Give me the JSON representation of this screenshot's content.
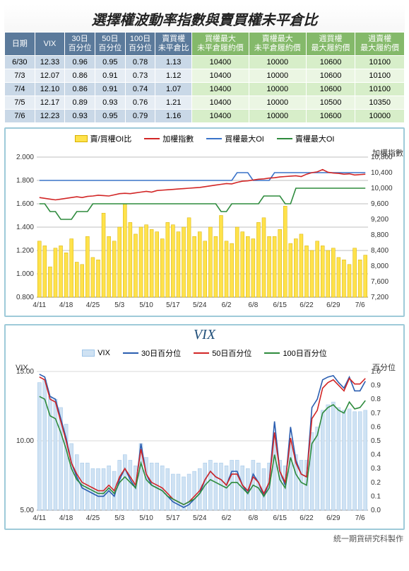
{
  "title": "選擇權波動率指數與賣買權未平倉比",
  "footer": "統一期貨研究科製作",
  "table": {
    "headers_blue": [
      "日期",
      "VIX",
      "30日\n百分位",
      "50日\n百分位",
      "100日\n百分位",
      "賣買權\n未平倉比"
    ],
    "headers_green": [
      "買權最大\n未平倉履約價",
      "賣權最大\n未平倉履約價",
      "週買權\n最大履約價",
      "週賣權\n最大履約價"
    ],
    "rows": [
      {
        "date": "6/30",
        "vix": "12.33",
        "p30": "0.96",
        "p50": "0.95",
        "p100": "0.78",
        "pcr": "1.13",
        "cmax": "10400",
        "pmax": "10000",
        "wc": "10600",
        "wp": "10100"
      },
      {
        "date": "7/3",
        "vix": "12.07",
        "p30": "0.86",
        "p50": "0.91",
        "p100": "0.73",
        "pcr": "1.12",
        "cmax": "10400",
        "pmax": "10000",
        "wc": "10600",
        "wp": "10100"
      },
      {
        "date": "7/4",
        "vix": "12.10",
        "p30": "0.86",
        "p50": "0.91",
        "p100": "0.74",
        "pcr": "1.07",
        "cmax": "10400",
        "pmax": "10000",
        "wc": "10600",
        "wp": "10100"
      },
      {
        "date": "7/5",
        "vix": "12.17",
        "p30": "0.89",
        "p50": "0.93",
        "p100": "0.76",
        "pcr": "1.21",
        "cmax": "10400",
        "pmax": "10000",
        "wc": "10500",
        "wp": "10350"
      },
      {
        "date": "7/6",
        "vix": "12.23",
        "p30": "0.93",
        "p50": "0.95",
        "p100": "0.79",
        "pcr": "1.16",
        "cmax": "10400",
        "pmax": "10000",
        "wc": "10600",
        "wp": "10000"
      }
    ]
  },
  "chart1": {
    "legend": {
      "oi": "賣/買權OI比",
      "twi": "加權指數",
      "call": "買權最大OI",
      "put": "賣權最大OI"
    },
    "colors": {
      "bar": "#ffe24b",
      "bar_border": "#d6b000",
      "twi": "#d22626",
      "call": "#3a73c9",
      "put": "#2e8b3d",
      "grid": "#bfbfbf",
      "axis": "#888888",
      "text": "#333333"
    },
    "axis_left": {
      "label_none": "",
      "min": 0.8,
      "max": 2.0,
      "step": 0.2,
      "fmt": "3"
    },
    "axis_right": {
      "label": "加權指數",
      "min": 7200,
      "max": 10800,
      "step": 400
    },
    "x_labels": [
      "4/11",
      "4/18",
      "4/25",
      "5/3",
      "5/10",
      "5/17",
      "5/24",
      "6/2",
      "6/8",
      "6/15",
      "6/22",
      "6/29",
      "7/6"
    ],
    "bars": [
      1.28,
      1.24,
      1.06,
      1.22,
      1.24,
      1.18,
      1.3,
      1.1,
      1.08,
      1.32,
      1.14,
      1.12,
      1.52,
      1.32,
      1.28,
      1.4,
      1.6,
      1.44,
      1.34,
      1.4,
      1.42,
      1.38,
      1.36,
      1.3,
      1.44,
      1.42,
      1.36,
      1.4,
      1.48,
      1.32,
      1.36,
      1.28,
      1.4,
      1.32,
      1.5,
      1.28,
      1.26,
      1.4,
      1.36,
      1.32,
      1.3,
      1.44,
      1.48,
      1.32,
      1.32,
      1.38,
      1.58,
      1.26,
      1.3,
      1.34,
      1.24,
      1.2,
      1.28,
      1.24,
      1.2,
      1.22,
      1.14,
      1.12,
      1.08,
      1.22,
      1.12,
      1.16
    ],
    "twi": [
      9760,
      9740,
      9720,
      9700,
      9720,
      9740,
      9760,
      9780,
      9760,
      9790,
      9800,
      9820,
      9810,
      9800,
      9830,
      9860,
      9870,
      9860,
      9880,
      9900,
      9920,
      9900,
      9940,
      9950,
      9960,
      9970,
      9980,
      9990,
      10000,
      10010,
      10020,
      10040,
      10060,
      10080,
      10100,
      10120,
      10110,
      10150,
      10180,
      10190,
      10210,
      10230,
      10240,
      10260,
      10270,
      10290,
      10300,
      10310,
      10320,
      10300,
      10360,
      10400,
      10420,
      10480,
      10410,
      10390,
      10380,
      10360,
      10370,
      10340,
      10350,
      10360
    ],
    "call": [
      10200,
      10200,
      10200,
      10200,
      10200,
      10200,
      10200,
      10200,
      10200,
      10200,
      10200,
      10200,
      10200,
      10200,
      10200,
      10200,
      10200,
      10200,
      10200,
      10200,
      10200,
      10200,
      10200,
      10200,
      10200,
      10200,
      10200,
      10200,
      10200,
      10200,
      10200,
      10200,
      10200,
      10200,
      10200,
      10200,
      10200,
      10400,
      10400,
      10400,
      10200,
      10200,
      10200,
      10200,
      10400,
      10400,
      10400,
      10400,
      10400,
      10400,
      10400,
      10400,
      10400,
      10400,
      10400,
      10400,
      10400,
      10400,
      10400,
      10400,
      10400,
      10400
    ],
    "put": [
      9600,
      9600,
      9400,
      9400,
      9200,
      9200,
      9200,
      9400,
      9400,
      9400,
      9600,
      9600,
      9600,
      9600,
      9600,
      9600,
      9600,
      9600,
      9600,
      9600,
      9600,
      9600,
      9600,
      9600,
      9600,
      9600,
      9600,
      9600,
      9600,
      9600,
      9600,
      9600,
      9600,
      9600,
      9400,
      9400,
      9600,
      9600,
      9600,
      9600,
      9600,
      9600,
      9800,
      9800,
      9800,
      9800,
      9600,
      9600,
      10000,
      10000,
      10000,
      10000,
      10000,
      10000,
      10000,
      10000,
      10000,
      10000,
      10000,
      10000,
      10000,
      10000
    ]
  },
  "chart2": {
    "title": "VIX",
    "legend": {
      "vix": "VIX",
      "p30": "30日百分位",
      "p50": "50日百分位",
      "p100": "100日百分位"
    },
    "colors": {
      "bar": "#cfe2f3",
      "bar_border": "#9fc5e8",
      "p30": "#2a5db0",
      "p50": "#d22626",
      "p100": "#2e8b3d",
      "grid": "#d9d9d9",
      "axis": "#888888",
      "text": "#333333"
    },
    "axis_left": {
      "label": "VIX",
      "min": 5.0,
      "max": 15.0,
      "step": 5.0
    },
    "axis_right": {
      "label": "百分位",
      "min": 0,
      "max": 1,
      "step": 0.1
    },
    "x_labels": [
      "4/11",
      "4/18",
      "4/25",
      "5/3",
      "5/10",
      "5/17",
      "5/24",
      "6/2",
      "6/8",
      "6/15",
      "6/22",
      "6/29",
      "7/6"
    ],
    "vix": [
      14.2,
      14.4,
      13.2,
      13.0,
      12.4,
      11.2,
      9.8,
      9.0,
      8.4,
      8.4,
      8.0,
      8.0,
      8.0,
      8.2,
      7.8,
      8.6,
      9.0,
      8.6,
      8.2,
      9.8,
      8.8,
      8.4,
      8.4,
      8.2,
      8.0,
      7.6,
      7.6,
      7.4,
      7.6,
      7.8,
      8.0,
      8.4,
      8.6,
      8.4,
      8.4,
      8.2,
      8.6,
      8.6,
      8.2,
      8.0,
      8.6,
      8.4,
      8.0,
      8.4,
      10.2,
      8.6,
      8.2,
      10.0,
      9.0,
      8.6,
      8.6,
      10.6,
      11.0,
      12.2,
      12.6,
      12.8,
      12.4,
      12.2,
      12.3,
      12.1,
      12.1,
      12.2
    ],
    "p30": [
      0.98,
      0.96,
      0.82,
      0.8,
      0.66,
      0.52,
      0.34,
      0.24,
      0.16,
      0.14,
      0.12,
      0.1,
      0.1,
      0.14,
      0.1,
      0.22,
      0.3,
      0.22,
      0.16,
      0.48,
      0.26,
      0.18,
      0.16,
      0.14,
      0.1,
      0.06,
      0.04,
      0.02,
      0.04,
      0.08,
      0.12,
      0.22,
      0.28,
      0.24,
      0.22,
      0.18,
      0.28,
      0.28,
      0.18,
      0.12,
      0.26,
      0.2,
      0.1,
      0.2,
      0.64,
      0.28,
      0.18,
      0.6,
      0.36,
      0.26,
      0.24,
      0.74,
      0.8,
      0.94,
      0.96,
      0.97,
      0.92,
      0.88,
      0.96,
      0.86,
      0.86,
      0.93
    ],
    "p50": [
      0.96,
      0.94,
      0.8,
      0.78,
      0.64,
      0.5,
      0.34,
      0.26,
      0.2,
      0.18,
      0.16,
      0.14,
      0.14,
      0.18,
      0.14,
      0.24,
      0.3,
      0.24,
      0.18,
      0.44,
      0.26,
      0.2,
      0.18,
      0.16,
      0.12,
      0.08,
      0.06,
      0.04,
      0.06,
      0.1,
      0.14,
      0.22,
      0.28,
      0.24,
      0.22,
      0.18,
      0.26,
      0.26,
      0.18,
      0.14,
      0.24,
      0.2,
      0.12,
      0.2,
      0.56,
      0.28,
      0.2,
      0.52,
      0.34,
      0.26,
      0.24,
      0.66,
      0.72,
      0.88,
      0.92,
      0.94,
      0.9,
      0.86,
      0.95,
      0.91,
      0.91,
      0.95
    ],
    "p100": [
      0.82,
      0.8,
      0.68,
      0.66,
      0.56,
      0.44,
      0.3,
      0.22,
      0.18,
      0.16,
      0.14,
      0.12,
      0.12,
      0.16,
      0.12,
      0.2,
      0.24,
      0.2,
      0.16,
      0.34,
      0.22,
      0.18,
      0.16,
      0.14,
      0.1,
      0.08,
      0.06,
      0.04,
      0.06,
      0.08,
      0.12,
      0.18,
      0.22,
      0.2,
      0.18,
      0.16,
      0.2,
      0.2,
      0.16,
      0.12,
      0.18,
      0.16,
      0.1,
      0.16,
      0.4,
      0.22,
      0.16,
      0.38,
      0.26,
      0.2,
      0.18,
      0.48,
      0.54,
      0.7,
      0.74,
      0.76,
      0.72,
      0.7,
      0.78,
      0.73,
      0.74,
      0.79
    ]
  }
}
